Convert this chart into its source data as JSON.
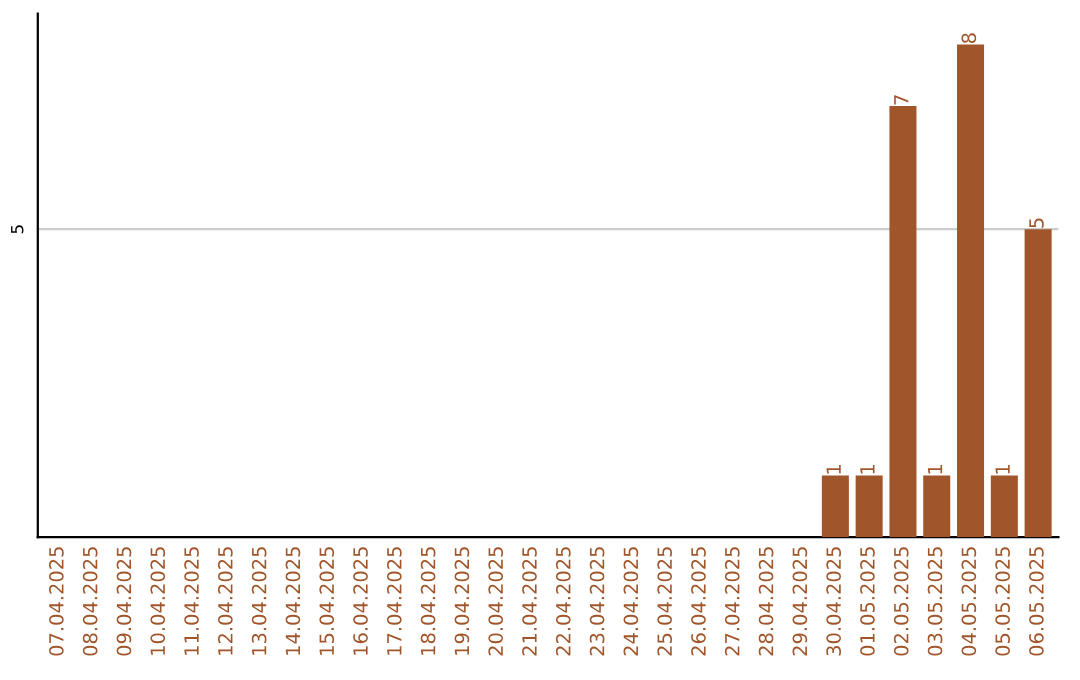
{
  "chart_data": {
    "type": "bar",
    "categories": [
      "07.04.2025",
      "08.04.2025",
      "09.04.2025",
      "10.04.2025",
      "11.04.2025",
      "12.04.2025",
      "13.04.2025",
      "14.04.2025",
      "15.04.2025",
      "16.04.2025",
      "17.04.2025",
      "18.04.2025",
      "19.04.2025",
      "20.04.2025",
      "21.04.2025",
      "22.04.2025",
      "23.04.2025",
      "24.04.2025",
      "25.04.2025",
      "26.04.2025",
      "27.04.2025",
      "28.04.2025",
      "29.04.2025",
      "30.04.2025",
      "01.05.2025",
      "02.05.2025",
      "03.05.2025",
      "04.05.2025",
      "05.05.2025",
      "06.05.2025"
    ],
    "values": [
      null,
      null,
      null,
      null,
      null,
      null,
      null,
      null,
      null,
      null,
      null,
      null,
      null,
      null,
      null,
      null,
      null,
      null,
      null,
      null,
      null,
      null,
      null,
      1,
      1,
      7,
      1,
      8,
      1,
      5
    ],
    "value_labels": [
      null,
      null,
      null,
      null,
      null,
      null,
      null,
      null,
      null,
      null,
      null,
      null,
      null,
      null,
      null,
      null,
      null,
      null,
      null,
      null,
      null,
      null,
      null,
      "1",
      "1",
      "7",
      "1",
      "8",
      "1",
      "5"
    ],
    "color": "#a0562a",
    "ylim": [
      0,
      8.5
    ],
    "ref_lines": [
      {
        "axis": "y",
        "value": 5,
        "label": "5",
        "color": "#cccccc"
      }
    ],
    "legend": false
  }
}
